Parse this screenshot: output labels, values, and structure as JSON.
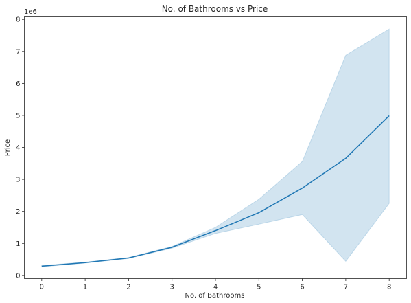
{
  "chart_data": {
    "type": "line",
    "title": "No. of  Bathrooms vs Price",
    "xlabel": "No. of  Bathrooms",
    "ylabel": "Price",
    "y_offset_label": "1e6",
    "x": [
      0,
      1,
      2,
      3,
      4,
      5,
      6,
      7,
      8
    ],
    "series": [
      {
        "values": [
          290000,
          400000,
          545000,
          880000,
          1400000,
          1960000,
          2730000,
          3660000,
          4990000
        ],
        "ci_lower": [
          270000,
          385000,
          530000,
          850000,
          1310000,
          1600000,
          1900000,
          440000,
          2250000
        ],
        "ci_upper": [
          310000,
          415000,
          560000,
          905000,
          1500000,
          2380000,
          3560000,
          6880000,
          7700000
        ],
        "color": "#1f77b4"
      }
    ],
    "x_ticks": [
      "0",
      "1",
      "2",
      "3",
      "4",
      "5",
      "6",
      "7",
      "8"
    ],
    "y_ticks": [
      "0",
      "1",
      "2",
      "3",
      "4",
      "5",
      "6",
      "7",
      "8"
    ],
    "xlim": [
      -0.4,
      8.4
    ],
    "ylim": [
      -100000,
      8080000
    ],
    "grid": false,
    "band_color": "#1f77b4"
  }
}
